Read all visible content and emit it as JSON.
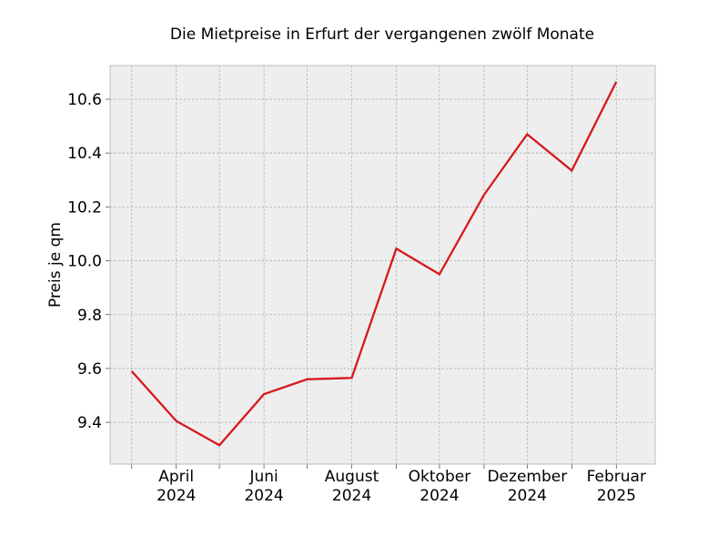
{
  "chart_data": {
    "type": "line",
    "title": "Die Mietpreise in Erfurt der vergangenen zwölf Monate",
    "xlabel": "",
    "ylabel": "Preis je qm",
    "x": [
      "2024-03",
      "2024-04",
      "2024-05",
      "2024-06",
      "2024-07",
      "2024-08",
      "2024-09",
      "2024-10",
      "2024-11",
      "2024-12",
      "2025-01",
      "2025-02"
    ],
    "series": [
      {
        "values": [
          9.59,
          9.405,
          9.315,
          9.505,
          9.56,
          9.565,
          10.045,
          9.95,
          10.245,
          10.47,
          10.335,
          10.665
        ]
      }
    ],
    "x_tick_labels": [
      {
        "x": "2024-04",
        "line1": "April",
        "line2": "2024"
      },
      {
        "x": "2024-06",
        "line1": "Juni",
        "line2": "2024"
      },
      {
        "x": "2024-08",
        "line1": "August",
        "line2": "2024"
      },
      {
        "x": "2024-10",
        "line1": "Oktober",
        "line2": "2024"
      },
      {
        "x": "2024-12",
        "line1": "Dezember",
        "line2": "2024"
      },
      {
        "x": "2025-02",
        "line1": "Februar",
        "line2": "2025"
      }
    ],
    "xlim": [
      "2024-02-15",
      "2025-02-28"
    ],
    "y_ticks": [
      9.4,
      9.6,
      9.8,
      10.0,
      10.2,
      10.4,
      10.6
    ],
    "y_tick_labels": [
      "9.4",
      "9.6",
      "9.8",
      "10.0",
      "10.2",
      "10.4",
      "10.6"
    ],
    "ylim": [
      9.245,
      10.725
    ],
    "grid": true,
    "legend": "none",
    "colors": {
      "line": "#d7191c",
      "plot_background": "#eeeeee",
      "grid": "#b0b0b0",
      "frame": "#bcbcbc"
    }
  }
}
